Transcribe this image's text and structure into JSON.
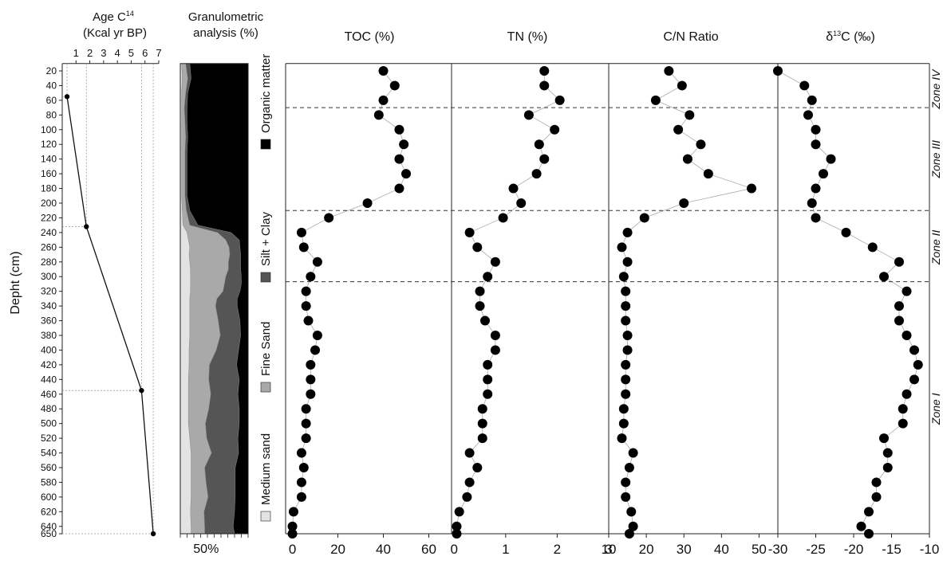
{
  "colors": {
    "organic": "#000000",
    "silt_clay": "#555555",
    "fine_sand": "#a9a9a9",
    "medium_sand": "#e3e3e3",
    "marker": "#000000",
    "connector": "#aaaaaa",
    "zone_line": "#333333"
  },
  "labels": {
    "depth_axis": "Depht (cm)",
    "age_title_1": "Age C",
    "age_title_sup": "14",
    "age_title_2": "(Kcal yr BP)",
    "gran_title_1": "Granulometric",
    "gran_title_2": "analysis (%)",
    "gran_tick": "50%",
    "legend": [
      "Organic matter",
      "Silt + Clay",
      "Fine Sand",
      "Medium sand"
    ],
    "zones": [
      "Zone IV",
      "Zone III",
      "Zone II",
      "Zone I"
    ]
  },
  "chart_data": [
    {
      "type": "line",
      "name": "age_model",
      "title": "Age C14 (Kcal yr BP)",
      "ylabel": "Depht (cm)",
      "xlim": [
        0,
        7
      ],
      "x_ticks": [
        1,
        2,
        3,
        4,
        5,
        6,
        7
      ],
      "ylim": [
        10,
        650
      ],
      "y_ticks": [
        20,
        40,
        60,
        80,
        100,
        120,
        140,
        160,
        180,
        200,
        220,
        240,
        260,
        280,
        300,
        320,
        340,
        360,
        380,
        400,
        420,
        440,
        460,
        480,
        500,
        520,
        540,
        560,
        580,
        600,
        620,
        640,
        650
      ],
      "points": [
        {
          "age": 0.35,
          "depth": 55
        },
        {
          "age": 1.75,
          "depth": 232
        },
        {
          "age": 5.75,
          "depth": 455
        },
        {
          "age": 6.6,
          "depth": 650
        }
      ]
    },
    {
      "type": "area",
      "name": "granulometry",
      "title": "Granulometric analysis (%)",
      "x_ticks": [
        "50%"
      ],
      "depth": [
        10,
        30,
        50,
        70,
        90,
        110,
        130,
        150,
        170,
        190,
        210,
        230,
        240,
        250,
        260,
        270,
        280,
        290,
        300,
        310,
        320,
        330,
        340,
        360,
        380,
        400,
        420,
        440,
        460,
        480,
        500,
        520,
        540,
        560,
        580,
        600,
        620,
        640,
        650
      ],
      "series": [
        {
          "name": "Medium sand",
          "values": [
            2,
            3,
            2,
            2,
            2,
            2,
            2,
            2,
            2,
            2,
            3,
            4,
            10,
            12,
            14,
            13,
            14,
            15,
            15,
            15,
            15,
            14,
            14,
            14,
            14,
            13,
            13,
            12,
            12,
            12,
            12,
            14,
            16,
            16,
            16,
            16,
            15,
            16,
            16
          ]
        },
        {
          "name": "Fine Sand",
          "values": [
            6,
            8,
            6,
            4,
            5,
            6,
            5,
            5,
            5,
            5,
            6,
            10,
            45,
            55,
            58,
            60,
            57,
            56,
            52,
            50,
            48,
            40,
            38,
            42,
            45,
            40,
            30,
            30,
            33,
            30,
            25,
            25,
            30,
            20,
            22,
            25,
            20,
            20,
            20
          ]
        },
        {
          "name": "Silt + Clay",
          "values": [
            6,
            5,
            3,
            4,
            3,
            3,
            3,
            3,
            3,
            3,
            5,
            12,
            20,
            20,
            16,
            16,
            18,
            18,
            23,
            25,
            25,
            30,
            32,
            32,
            30,
            33,
            40,
            45,
            40,
            45,
            50,
            46,
            40,
            45,
            43,
            40,
            45,
            42,
            44
          ]
        },
        {
          "name": "Organic matter",
          "values": [
            86,
            84,
            89,
            90,
            90,
            89,
            90,
            90,
            90,
            90,
            86,
            74,
            25,
            13,
            12,
            11,
            11,
            11,
            10,
            10,
            12,
            16,
            16,
            12,
            11,
            14,
            17,
            13,
            15,
            13,
            13,
            15,
            14,
            19,
            19,
            19,
            20,
            22,
            20
          ]
        }
      ]
    },
    {
      "type": "scatter",
      "name": "toc",
      "title": "TOC (%)",
      "xlim": [
        -3,
        70
      ],
      "x_ticks": [
        0,
        20,
        40,
        60
      ],
      "depth": [
        20,
        40,
        60,
        80,
        100,
        120,
        140,
        160,
        180,
        200,
        220,
        240,
        260,
        280,
        300,
        320,
        340,
        360,
        380,
        400,
        420,
        440,
        460,
        480,
        500,
        520,
        540,
        560,
        580,
        600,
        620,
        640,
        650
      ],
      "values": [
        40,
        45,
        40,
        38,
        47,
        49,
        47,
        50,
        47,
        33,
        16,
        4,
        5,
        11,
        8,
        6,
        6,
        7,
        11,
        10,
        8,
        8,
        8,
        6,
        6,
        6,
        4,
        5,
        4,
        4,
        0.5,
        0,
        0
      ]
    },
    {
      "type": "scatter",
      "name": "tn",
      "title": "TN (%)",
      "xlim": [
        -0.05,
        3
      ],
      "x_ticks": [
        0,
        1,
        2,
        3
      ],
      "depth": [
        20,
        40,
        60,
        80,
        100,
        120,
        140,
        160,
        180,
        200,
        220,
        240,
        260,
        280,
        300,
        320,
        340,
        360,
        380,
        400,
        420,
        440,
        460,
        480,
        500,
        520,
        540,
        560,
        580,
        600,
        620,
        640,
        650
      ],
      "values": [
        1.75,
        1.75,
        2.05,
        1.45,
        1.95,
        1.65,
        1.75,
        1.6,
        1.15,
        1.3,
        0.95,
        0.3,
        0.45,
        0.8,
        0.65,
        0.5,
        0.5,
        0.6,
        0.8,
        0.8,
        0.65,
        0.65,
        0.65,
        0.55,
        0.55,
        0.55,
        0.3,
        0.45,
        0.3,
        0.25,
        0.1,
        0.05,
        0.05
      ]
    },
    {
      "type": "scatter",
      "name": "cn",
      "title": "C/N Ratio",
      "xlim": [
        10,
        55
      ],
      "x_ticks": [
        10,
        20,
        30,
        40,
        50
      ],
      "depth": [
        20,
        40,
        60,
        80,
        100,
        120,
        140,
        160,
        180,
        200,
        220,
        240,
        260,
        280,
        300,
        320,
        340,
        360,
        380,
        400,
        420,
        440,
        460,
        480,
        500,
        520,
        540,
        560,
        580,
        600,
        620,
        640,
        650
      ],
      "values": [
        26,
        29.5,
        22.5,
        31.5,
        28.5,
        34.5,
        31,
        36.5,
        48,
        30,
        19.5,
        15,
        13.5,
        15,
        14,
        14.5,
        14.5,
        14.5,
        15,
        15,
        14.5,
        14.5,
        14.5,
        14,
        14,
        13.5,
        16.5,
        15.5,
        14.5,
        14.5,
        16,
        16.5,
        15.5
      ]
    },
    {
      "type": "scatter",
      "name": "d13c",
      "title": "δ13C (‰)",
      "xlim": [
        -30,
        -10
      ],
      "x_ticks": [
        -30,
        -25,
        -20,
        -15,
        -10
      ],
      "depth": [
        20,
        40,
        60,
        80,
        100,
        120,
        140,
        160,
        180,
        200,
        220,
        240,
        260,
        280,
        300,
        320,
        340,
        360,
        380,
        400,
        420,
        440,
        460,
        480,
        500,
        520,
        540,
        560,
        580,
        600,
        620,
        640,
        650
      ],
      "values": [
        -30,
        -26.5,
        -25.5,
        -26,
        -25,
        -25,
        -23,
        -24,
        -25,
        -25.5,
        -25,
        -21,
        -17.5,
        -14,
        -16,
        -13,
        -14,
        -14,
        -13,
        -12,
        -11.5,
        -12,
        -13,
        -13.5,
        -13.5,
        -16,
        -15.5,
        -15.5,
        -17,
        -17,
        -18,
        -19,
        -18
      ]
    }
  ]
}
